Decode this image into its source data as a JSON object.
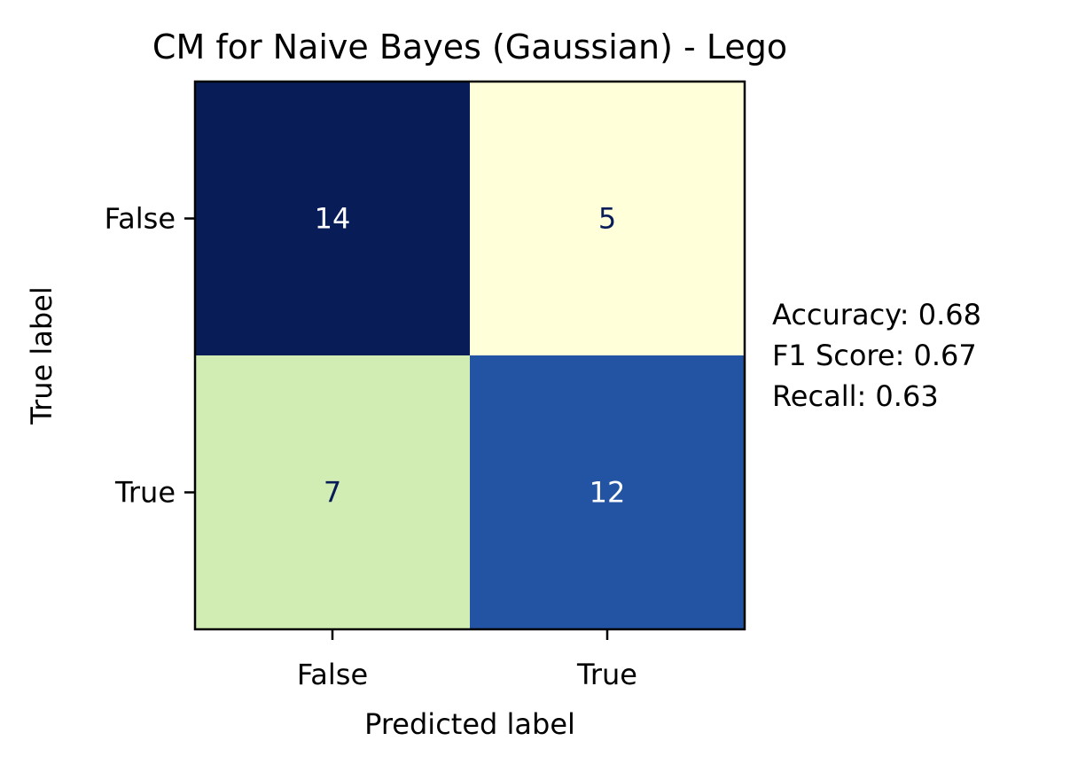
{
  "chart_data": {
    "type": "heatmap",
    "title": "CM for Naive Bayes (Gaussian) - Lego",
    "xlabel": "Predicted label",
    "ylabel": "True label",
    "x_categories": [
      "False",
      "True"
    ],
    "y_categories": [
      "False",
      "True"
    ],
    "values": [
      [
        14,
        5
      ],
      [
        7,
        12
      ]
    ],
    "colormap": "YlGnBu",
    "colors": {
      "cells": [
        [
          "#081d58",
          "#ffffd9"
        ],
        [
          "#d2edb3",
          "#2254a3"
        ]
      ],
      "dark_cell_text": "#ffffff",
      "light_cell_text": "#081d58"
    },
    "grid": false,
    "metrics": [
      {
        "label": "Accuracy",
        "value": "0.68",
        "text": "Accuracy: 0.68"
      },
      {
        "label": "F1 Score",
        "value": "0.67",
        "text": "F1 Score: 0.67"
      },
      {
        "label": "Recall",
        "value": "0.63",
        "text": "Recall: 0.63"
      }
    ]
  }
}
